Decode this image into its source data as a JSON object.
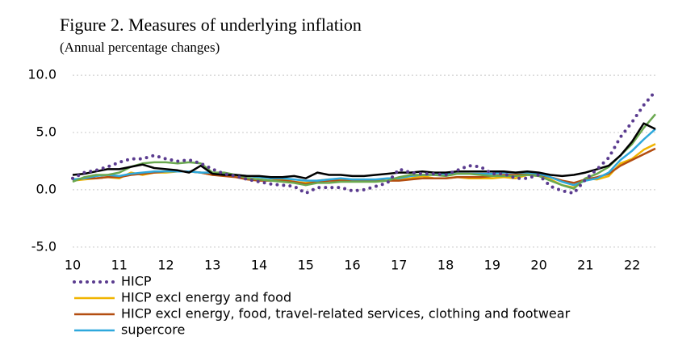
{
  "chart_data": {
    "type": "line",
    "title": "Figure 2. Measures of underlying inflation",
    "subtitle": "(Annual percentage changes)",
    "x": [
      10,
      10.25,
      10.5,
      10.75,
      11,
      11.25,
      11.5,
      11.75,
      12,
      12.25,
      12.5,
      12.75,
      13,
      13.25,
      13.5,
      13.75,
      14,
      14.25,
      14.5,
      14.75,
      15,
      15.25,
      15.5,
      15.75,
      16,
      16.25,
      16.5,
      16.75,
      17,
      17.25,
      17.5,
      17.75,
      18,
      18.25,
      18.5,
      18.75,
      19,
      19.25,
      19.5,
      19.75,
      20,
      20.25,
      20.5,
      20.75,
      21,
      21.25,
      21.5,
      21.75,
      22,
      22.25,
      22.5
    ],
    "xlim": [
      10,
      22.5
    ],
    "xticks": [
      10,
      11,
      12,
      13,
      14,
      15,
      16,
      17,
      18,
      19,
      20,
      21,
      22
    ],
    "ylim": [
      -6,
      10.5
    ],
    "yticks": [
      {
        "value": -5,
        "label": "-5.0"
      },
      {
        "value": 0,
        "label": "0.0"
      },
      {
        "value": 5,
        "label": "5.0"
      },
      {
        "value": 10,
        "label": "10.0"
      }
    ],
    "grid": true,
    "series": [
      {
        "name": "HICP",
        "color": "#5a3b8f",
        "style": "dotted",
        "values": [
          1.0,
          1.5,
          1.7,
          2.0,
          2.4,
          2.7,
          2.7,
          3.0,
          2.7,
          2.5,
          2.6,
          2.3,
          1.8,
          1.4,
          1.2,
          0.9,
          0.7,
          0.5,
          0.4,
          0.3,
          -0.3,
          0.2,
          0.2,
          0.2,
          -0.1,
          0.0,
          0.3,
          0.6,
          1.8,
          1.5,
          1.4,
          1.4,
          1.3,
          1.7,
          2.1,
          2.0,
          1.4,
          1.4,
          1.0,
          1.0,
          1.3,
          0.3,
          -0.1,
          -0.3,
          0.9,
          1.8,
          2.8,
          4.6,
          5.9,
          7.4,
          8.6
        ]
      },
      {
        "name": "HICP excl energy and food",
        "color": "#f0b400",
        "values": [
          0.8,
          0.9,
          1.0,
          1.1,
          1.0,
          1.5,
          1.3,
          1.5,
          1.5,
          1.6,
          1.6,
          1.5,
          1.3,
          1.3,
          1.2,
          1.0,
          0.9,
          0.8,
          0.9,
          0.7,
          0.6,
          0.8,
          0.9,
          0.9,
          0.9,
          0.9,
          0.8,
          0.8,
          0.9,
          1.0,
          1.2,
          1.0,
          1.0,
          1.1,
          1.0,
          1.0,
          1.0,
          1.1,
          1.0,
          1.3,
          1.2,
          0.9,
          0.4,
          0.2,
          1.0,
          0.9,
          1.2,
          2.3,
          2.7,
          3.5,
          4.0
        ]
      },
      {
        "name": "HICP excl energy, food, travel-related services, clothing and footwear",
        "color": "#b34d10",
        "values": [
          0.8,
          1.0,
          1.0,
          1.1,
          1.1,
          1.3,
          1.4,
          1.5,
          1.6,
          1.6,
          1.6,
          1.5,
          1.3,
          1.2,
          1.1,
          0.9,
          0.8,
          0.8,
          0.8,
          0.7,
          0.5,
          0.7,
          0.8,
          0.8,
          0.8,
          0.8,
          0.8,
          0.8,
          0.8,
          0.9,
          1.0,
          1.0,
          1.0,
          1.1,
          1.1,
          1.1,
          1.2,
          1.3,
          1.3,
          1.4,
          1.3,
          1.1,
          0.8,
          0.6,
          0.9,
          1.1,
          1.4,
          2.1,
          2.6,
          3.1,
          3.6
        ]
      },
      {
        "name": "supercore",
        "color": "#2ea8dc",
        "values": [
          0.9,
          1.0,
          1.2,
          1.3,
          1.2,
          1.4,
          1.5,
          1.6,
          1.6,
          1.6,
          1.6,
          1.5,
          1.5,
          1.4,
          1.3,
          1.2,
          1.1,
          1.0,
          1.0,
          0.9,
          0.8,
          0.8,
          0.9,
          1.0,
          0.9,
          0.9,
          0.9,
          1.0,
          1.0,
          1.2,
          1.3,
          1.3,
          1.4,
          1.4,
          1.4,
          1.4,
          1.4,
          1.5,
          1.5,
          1.5,
          1.4,
          1.1,
          0.7,
          0.4,
          0.8,
          1.0,
          1.5,
          2.6,
          3.4,
          4.4,
          5.3
        ]
      },
      {
        "color": "#6aa84f",
        "values": [
          0.7,
          1.1,
          1.3,
          1.3,
          1.5,
          2.0,
          2.3,
          2.4,
          2.4,
          2.3,
          2.4,
          2.3,
          1.5,
          1.5,
          1.3,
          1.0,
          0.9,
          0.8,
          0.7,
          0.6,
          0.4,
          0.6,
          0.6,
          0.7,
          0.7,
          0.7,
          0.7,
          0.8,
          1.1,
          1.3,
          1.3,
          1.3,
          1.2,
          1.4,
          1.4,
          1.3,
          1.2,
          1.2,
          1.2,
          1.3,
          1.2,
          0.8,
          0.4,
          0.1,
          1.0,
          1.4,
          2.0,
          3.0,
          4.0,
          5.4,
          6.6
        ]
      },
      {
        "color": "#000000",
        "values": [
          1.3,
          1.4,
          1.6,
          1.8,
          1.8,
          2.0,
          2.2,
          1.9,
          1.8,
          1.7,
          1.5,
          2.1,
          1.4,
          1.3,
          1.3,
          1.2,
          1.2,
          1.1,
          1.1,
          1.2,
          1.0,
          1.5,
          1.3,
          1.3,
          1.2,
          1.2,
          1.3,
          1.4,
          1.5,
          1.5,
          1.6,
          1.5,
          1.5,
          1.6,
          1.6,
          1.6,
          1.6,
          1.6,
          1.5,
          1.6,
          1.5,
          1.3,
          1.2,
          1.3,
          1.5,
          1.8,
          2.1,
          3.0,
          4.2,
          5.8,
          5.3
        ]
      }
    ]
  }
}
